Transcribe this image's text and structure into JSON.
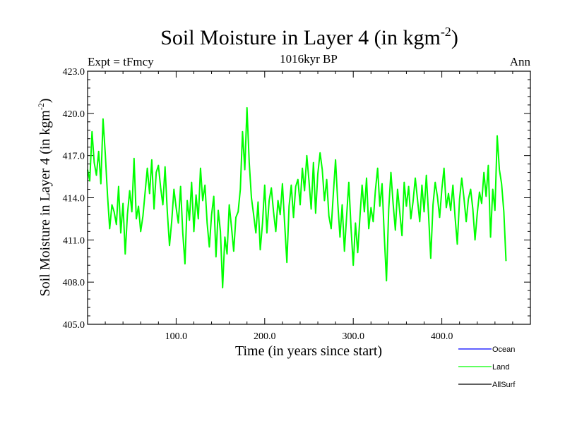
{
  "chart_data": {
    "type": "line",
    "title": "Soil Moisture in Layer 4 (in kgm",
    "title_superscript": "-2",
    "title_close": ")",
    "subtitle": "1016kyr BP",
    "left_label": "Expt = tFmcy",
    "right_label": "Ann",
    "xlabel": "Time (in years since start)",
    "ylabel": "Soil Moisture in Layer 4 (in kgm",
    "ylabel_superscript": "-2",
    "ylabel_close": ")",
    "xlim": [
      0,
      500
    ],
    "ylim": [
      405,
      423
    ],
    "x_ticks": [
      100,
      200,
      300,
      400
    ],
    "x_tick_labels": [
      "100.0",
      "200.0",
      "300.0",
      "400.0"
    ],
    "y_ticks": [
      405,
      408,
      411,
      414,
      417,
      420,
      423
    ],
    "y_tick_labels": [
      "405.0",
      "408.0",
      "411.0",
      "414.0",
      "417.0",
      "420.0",
      "423.0"
    ],
    "legend": [
      {
        "name": "Ocean",
        "color": "#0000ff"
      },
      {
        "name": "Land",
        "color": "#00ff00"
      },
      {
        "name": "AllSurf",
        "color": "#000000"
      }
    ],
    "series": [
      {
        "name": "Land",
        "color": "#00ff00",
        "x_start": 0,
        "x_step": 2.5,
        "values": [
          416.0,
          415.2,
          418.7,
          416.5,
          415.6,
          417.3,
          415.0,
          419.6,
          417.1,
          414.2,
          411.8,
          413.5,
          413.0,
          412.1,
          414.8,
          411.5,
          413.6,
          410.0,
          412.8,
          414.5,
          413.0,
          416.8,
          412.5,
          413.4,
          411.6,
          412.7,
          414.4,
          416.1,
          414.3,
          416.7,
          413.2,
          415.8,
          416.3,
          414.7,
          413.5,
          416.2,
          413.0,
          410.6,
          412.3,
          414.6,
          413.3,
          412.2,
          414.8,
          411.5,
          409.3,
          413.8,
          412.4,
          415.1,
          411.6,
          414.2,
          412.5,
          416.1,
          413.8,
          414.9,
          412.2,
          410.5,
          412.8,
          414.1,
          409.8,
          413.1,
          411.6,
          407.6,
          411.2,
          410.0,
          413.5,
          411.9,
          410.2,
          412.6,
          413.0,
          414.6,
          418.7,
          416.0,
          420.4,
          416.5,
          414.0,
          412.8,
          411.5,
          413.7,
          410.3,
          412.2,
          414.9,
          411.5,
          413.8,
          414.7,
          413.0,
          411.6,
          413.8,
          412.8,
          415.0,
          412.2,
          409.4,
          413.4,
          414.9,
          412.6,
          414.8,
          415.3,
          413.5,
          416.1,
          414.5,
          417.0,
          415.2,
          413.2,
          416.5,
          412.9,
          415.7,
          417.2,
          416.0,
          413.8,
          415.3,
          412.7,
          411.8,
          414.3,
          416.7,
          413.6,
          411.2,
          413.5,
          410.2,
          412.7,
          415.1,
          411.8,
          409.2,
          412.2,
          410.1,
          412.6,
          414.9,
          413.0,
          415.4,
          411.8,
          413.3,
          412.3,
          414.5,
          416.1,
          413.4,
          415.0,
          411.3,
          408.1,
          413.2,
          415.8,
          413.6,
          411.7,
          414.6,
          413.0,
          411.3,
          415.1,
          413.4,
          414.8,
          412.5,
          413.7,
          415.4,
          413.9,
          412.3,
          414.9,
          413.0,
          415.6,
          412.8,
          409.7,
          413.5,
          415.1,
          414.1,
          412.6,
          414.6,
          416.1,
          413.3,
          414.3,
          413.1,
          414.9,
          412.6,
          410.7,
          413.9,
          415.4,
          414.0,
          412.3,
          413.9,
          414.6,
          413.2,
          411.0,
          412.9,
          414.4,
          413.6,
          415.8,
          414.1,
          416.3,
          411.2,
          414.6,
          413.1,
          418.4,
          416.0,
          415.0,
          413.0,
          409.5
        ]
      }
    ]
  }
}
